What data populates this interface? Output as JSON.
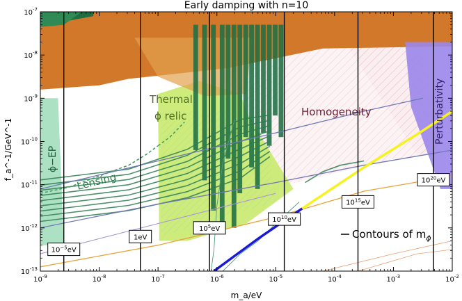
{
  "chart_data": {
    "type": "area",
    "title": "Early damping with n=10",
    "xlabel": "m_a/eV",
    "ylabel": "f_a^-1/GeV^-1",
    "x_scale": "log",
    "y_scale": "log",
    "xlim": [
      1e-09,
      0.01
    ],
    "ylim": [
      1e-13,
      1e-07
    ],
    "grid": false,
    "x_ticks": [
      {
        "value": 1e-09,
        "base": "10",
        "exp": "-9"
      },
      {
        "value": 1e-08,
        "base": "10",
        "exp": "-8"
      },
      {
        "value": 1e-07,
        "base": "10",
        "exp": "-7"
      },
      {
        "value": 1e-06,
        "base": "10",
        "exp": "-6"
      },
      {
        "value": 1e-05,
        "base": "10",
        "exp": "-5"
      },
      {
        "value": 0.0001,
        "base": "10",
        "exp": "-4"
      },
      {
        "value": 0.001,
        "base": "10",
        "exp": "-3"
      },
      {
        "value": 0.01,
        "base": "10",
        "exp": "-2"
      }
    ],
    "y_ticks": [
      {
        "value": 1e-13,
        "base": "10",
        "exp": "-13"
      },
      {
        "value": 1e-12,
        "base": "10",
        "exp": "-12"
      },
      {
        "value": 1e-11,
        "base": "10",
        "exp": "-11"
      },
      {
        "value": 1e-10,
        "base": "10",
        "exp": "-10"
      },
      {
        "value": 1e-09,
        "base": "10",
        "exp": "-9"
      },
      {
        "value": 1e-08,
        "base": "10",
        "exp": "-8"
      },
      {
        "value": 1e-07,
        "base": "10",
        "exp": "-7"
      }
    ],
    "region_labels": {
      "thermal_line1": "Thermal",
      "thermal_line2": "ϕ relic",
      "homogeneity": "Homogeneity",
      "lensing": "Lensing",
      "perturbativity": "Perturbativity",
      "phi_ep": "ϕ−EP",
      "contours": "Contours of m",
      "contours_sub": "ϕ"
    },
    "contour_labels": [
      {
        "text": "10",
        "exp": "−5",
        "unit": "eV",
        "x": 2.5e-09,
        "y": 3.2e-13
      },
      {
        "text": "1eV",
        "exp": "",
        "unit": "",
        "x": 5e-08,
        "y": 6.3e-13
      },
      {
        "text": "10",
        "exp": "5",
        "unit": "eV",
        "x": 7.5e-07,
        "y": 1e-12
      },
      {
        "text": "10",
        "exp": "10",
        "unit": "eV",
        "x": 1.4e-05,
        "y": 1.6e-12
      },
      {
        "text": "10",
        "exp": "15",
        "unit": "eV",
        "x": 0.00025,
        "y": 4e-12
      },
      {
        "text": "10",
        "exp": "20",
        "unit": "eV",
        "x": 0.0048,
        "y": 1.3e-11
      }
    ],
    "contour_verticals_x": [
      2.5e-09,
      5e-08,
      7.5e-07,
      1.4e-05,
      0.00025,
      0.0048
    ],
    "colors": {
      "orange": "#d2782a",
      "thermal": "#c8ea6e",
      "phi_ep": "#9fdcb8",
      "lensing": "#2e7d4f",
      "homogeneity": "#f2c6c6",
      "homogeneity_text": "#6b1832",
      "perturbativity": "#9b86ea",
      "dark_green": "#1f6e43",
      "blue": "#1a1ad6",
      "yellow": "#f6f21f",
      "slate": "#6f78b4",
      "gold": "#e8a23a"
    }
  }
}
